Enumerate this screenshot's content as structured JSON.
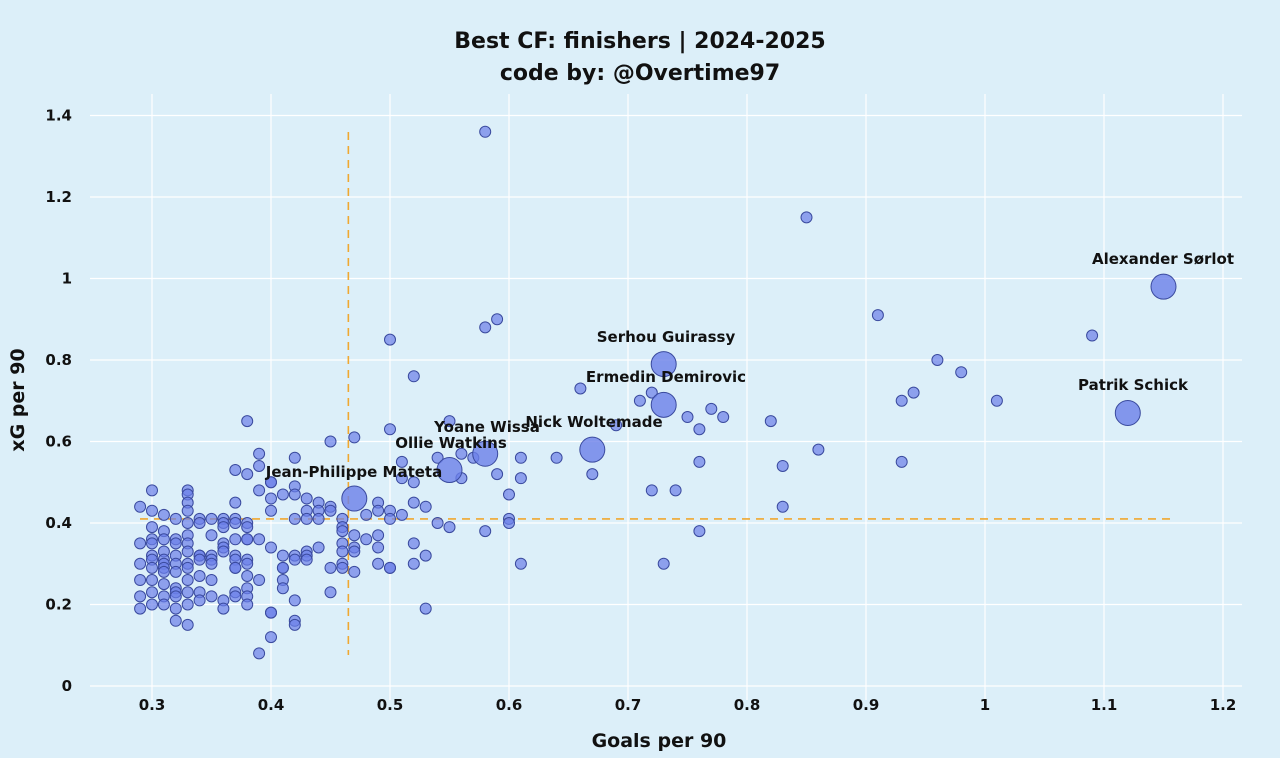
{
  "chart_data": {
    "type": "scatter",
    "title": "Best CF: finishers | 2024-2025",
    "subtitle": "code by: @Overtime97",
    "xlabel": "Goals per 90",
    "ylabel": "xG per 90",
    "xlim": [
      0.25,
      1.21
    ],
    "ylim": [
      0,
      1.42
    ],
    "xticks": [
      "0.3",
      "0.4",
      "0.5",
      "0.6",
      "0.7",
      "0.8",
      "0.9",
      "1",
      "1.1",
      "1.2"
    ],
    "yticks": [
      "0",
      "0.2",
      "0.4",
      "0.6",
      "0.8",
      "1",
      "1.2",
      "1.4"
    ],
    "grid": true,
    "reference_lines": {
      "x_mean": 0.465,
      "y_mean": 0.41
    },
    "colors": {
      "background": "#dceff9",
      "point": "#6b7fe8",
      "point_edge": "#3a4a9e",
      "reference": "#f0a830",
      "grid": "#ffffff"
    },
    "highlighted": [
      {
        "name": "Alexander Sørlot",
        "x": 1.15,
        "y": 0.98
      },
      {
        "name": "Patrik Schick",
        "x": 1.12,
        "y": 0.67
      },
      {
        "name": "Serhou Guirassy",
        "x": 0.73,
        "y": 0.79
      },
      {
        "name": "Ermedin Demirovic",
        "x": 0.73,
        "y": 0.69
      },
      {
        "name": "Nick Woltemade",
        "x": 0.67,
        "y": 0.58
      },
      {
        "name": "Yoane Wissa",
        "x": 0.58,
        "y": 0.57
      },
      {
        "name": "Ollie Watkins",
        "x": 0.55,
        "y": 0.53
      },
      {
        "name": "Jean-Philippe Mateta",
        "x": 0.47,
        "y": 0.46
      }
    ],
    "points": [
      [
        0.58,
        1.36
      ],
      [
        0.85,
        1.15
      ],
      [
        0.91,
        0.91
      ],
      [
        1.09,
        0.86
      ],
      [
        0.96,
        0.8
      ],
      [
        0.98,
        0.77
      ],
      [
        0.94,
        0.72
      ],
      [
        0.93,
        0.7
      ],
      [
        1.01,
        0.7
      ],
      [
        0.93,
        0.55
      ],
      [
        0.86,
        0.58
      ],
      [
        0.83,
        0.54
      ],
      [
        0.83,
        0.44
      ],
      [
        0.82,
        0.65
      ],
      [
        0.78,
        0.66
      ],
      [
        0.77,
        0.68
      ],
      [
        0.76,
        0.63
      ],
      [
        0.75,
        0.66
      ],
      [
        0.76,
        0.55
      ],
      [
        0.76,
        0.38
      ],
      [
        0.74,
        0.48
      ],
      [
        0.73,
        0.3
      ],
      [
        0.72,
        0.48
      ],
      [
        0.72,
        0.72
      ],
      [
        0.71,
        0.7
      ],
      [
        0.69,
        0.64
      ],
      [
        0.66,
        0.73
      ],
      [
        0.67,
        0.52
      ],
      [
        0.64,
        0.56
      ],
      [
        0.61,
        0.56
      ],
      [
        0.61,
        0.51
      ],
      [
        0.61,
        0.3
      ],
      [
        0.6,
        0.47
      ],
      [
        0.6,
        0.41
      ],
      [
        0.6,
        0.4
      ],
      [
        0.59,
        0.9
      ],
      [
        0.58,
        0.88
      ],
      [
        0.59,
        0.52
      ],
      [
        0.58,
        0.38
      ],
      [
        0.57,
        0.56
      ],
      [
        0.56,
        0.57
      ],
      [
        0.56,
        0.51
      ],
      [
        0.55,
        0.65
      ],
      [
        0.55,
        0.39
      ],
      [
        0.54,
        0.56
      ],
      [
        0.54,
        0.4
      ],
      [
        0.53,
        0.44
      ],
      [
        0.53,
        0.32
      ],
      [
        0.53,
        0.19
      ],
      [
        0.52,
        0.76
      ],
      [
        0.52,
        0.5
      ],
      [
        0.52,
        0.45
      ],
      [
        0.52,
        0.35
      ],
      [
        0.52,
        0.3
      ],
      [
        0.51,
        0.55
      ],
      [
        0.51,
        0.51
      ],
      [
        0.51,
        0.42
      ],
      [
        0.5,
        0.85
      ],
      [
        0.5,
        0.63
      ],
      [
        0.5,
        0.43
      ],
      [
        0.5,
        0.41
      ],
      [
        0.5,
        0.29
      ],
      [
        0.5,
        0.29
      ],
      [
        0.49,
        0.45
      ],
      [
        0.49,
        0.43
      ],
      [
        0.49,
        0.37
      ],
      [
        0.49,
        0.34
      ],
      [
        0.49,
        0.3
      ],
      [
        0.48,
        0.42
      ],
      [
        0.48,
        0.36
      ],
      [
        0.47,
        0.61
      ],
      [
        0.47,
        0.37
      ],
      [
        0.47,
        0.34
      ],
      [
        0.47,
        0.33
      ],
      [
        0.47,
        0.28
      ],
      [
        0.46,
        0.41
      ],
      [
        0.46,
        0.39
      ],
      [
        0.46,
        0.38
      ],
      [
        0.46,
        0.35
      ],
      [
        0.46,
        0.33
      ],
      [
        0.46,
        0.3
      ],
      [
        0.46,
        0.29
      ],
      [
        0.45,
        0.6
      ],
      [
        0.45,
        0.44
      ],
      [
        0.45,
        0.43
      ],
      [
        0.45,
        0.29
      ],
      [
        0.45,
        0.23
      ],
      [
        0.44,
        0.45
      ],
      [
        0.44,
        0.43
      ],
      [
        0.44,
        0.41
      ],
      [
        0.44,
        0.34
      ],
      [
        0.43,
        0.46
      ],
      [
        0.43,
        0.43
      ],
      [
        0.43,
        0.41
      ],
      [
        0.43,
        0.33
      ],
      [
        0.43,
        0.32
      ],
      [
        0.43,
        0.31
      ],
      [
        0.42,
        0.56
      ],
      [
        0.42,
        0.49
      ],
      [
        0.42,
        0.47
      ],
      [
        0.42,
        0.41
      ],
      [
        0.42,
        0.32
      ],
      [
        0.42,
        0.31
      ],
      [
        0.42,
        0.21
      ],
      [
        0.42,
        0.16
      ],
      [
        0.42,
        0.15
      ],
      [
        0.41,
        0.47
      ],
      [
        0.41,
        0.32
      ],
      [
        0.41,
        0.29
      ],
      [
        0.41,
        0.29
      ],
      [
        0.41,
        0.26
      ],
      [
        0.41,
        0.24
      ],
      [
        0.4,
        0.5
      ],
      [
        0.4,
        0.5
      ],
      [
        0.4,
        0.46
      ],
      [
        0.4,
        0.43
      ],
      [
        0.4,
        0.34
      ],
      [
        0.4,
        0.18
      ],
      [
        0.4,
        0.18
      ],
      [
        0.4,
        0.12
      ],
      [
        0.39,
        0.57
      ],
      [
        0.39,
        0.54
      ],
      [
        0.39,
        0.48
      ],
      [
        0.39,
        0.36
      ],
      [
        0.39,
        0.26
      ],
      [
        0.39,
        0.08
      ],
      [
        0.38,
        0.65
      ],
      [
        0.38,
        0.52
      ],
      [
        0.38,
        0.4
      ],
      [
        0.38,
        0.39
      ],
      [
        0.38,
        0.36
      ],
      [
        0.38,
        0.36
      ],
      [
        0.38,
        0.31
      ],
      [
        0.38,
        0.3
      ],
      [
        0.38,
        0.27
      ],
      [
        0.38,
        0.24
      ],
      [
        0.38,
        0.22
      ],
      [
        0.38,
        0.2
      ],
      [
        0.37,
        0.53
      ],
      [
        0.37,
        0.45
      ],
      [
        0.37,
        0.41
      ],
      [
        0.37,
        0.4
      ],
      [
        0.37,
        0.36
      ],
      [
        0.37,
        0.32
      ],
      [
        0.37,
        0.31
      ],
      [
        0.37,
        0.29
      ],
      [
        0.37,
        0.29
      ],
      [
        0.37,
        0.23
      ],
      [
        0.37,
        0.22
      ],
      [
        0.36,
        0.41
      ],
      [
        0.36,
        0.4
      ],
      [
        0.36,
        0.39
      ],
      [
        0.36,
        0.35
      ],
      [
        0.36,
        0.34
      ],
      [
        0.36,
        0.33
      ],
      [
        0.36,
        0.21
      ],
      [
        0.36,
        0.19
      ],
      [
        0.35,
        0.41
      ],
      [
        0.35,
        0.37
      ],
      [
        0.35,
        0.32
      ],
      [
        0.35,
        0.31
      ],
      [
        0.35,
        0.3
      ],
      [
        0.35,
        0.26
      ],
      [
        0.35,
        0.22
      ],
      [
        0.34,
        0.41
      ],
      [
        0.34,
        0.4
      ],
      [
        0.34,
        0.32
      ],
      [
        0.34,
        0.32
      ],
      [
        0.34,
        0.31
      ],
      [
        0.34,
        0.27
      ],
      [
        0.34,
        0.23
      ],
      [
        0.34,
        0.21
      ],
      [
        0.33,
        0.48
      ],
      [
        0.33,
        0.47
      ],
      [
        0.33,
        0.45
      ],
      [
        0.33,
        0.43
      ],
      [
        0.33,
        0.4
      ],
      [
        0.33,
        0.37
      ],
      [
        0.33,
        0.35
      ],
      [
        0.33,
        0.33
      ],
      [
        0.33,
        0.3
      ],
      [
        0.33,
        0.29
      ],
      [
        0.33,
        0.26
      ],
      [
        0.33,
        0.23
      ],
      [
        0.33,
        0.2
      ],
      [
        0.33,
        0.15
      ],
      [
        0.32,
        0.41
      ],
      [
        0.32,
        0.36
      ],
      [
        0.32,
        0.35
      ],
      [
        0.32,
        0.32
      ],
      [
        0.32,
        0.3
      ],
      [
        0.32,
        0.28
      ],
      [
        0.32,
        0.24
      ],
      [
        0.32,
        0.23
      ],
      [
        0.32,
        0.22
      ],
      [
        0.32,
        0.19
      ],
      [
        0.32,
        0.16
      ],
      [
        0.31,
        0.42
      ],
      [
        0.31,
        0.38
      ],
      [
        0.31,
        0.36
      ],
      [
        0.31,
        0.33
      ],
      [
        0.31,
        0.31
      ],
      [
        0.31,
        0.3
      ],
      [
        0.31,
        0.29
      ],
      [
        0.31,
        0.28
      ],
      [
        0.31,
        0.25
      ],
      [
        0.31,
        0.22
      ],
      [
        0.31,
        0.2
      ],
      [
        0.3,
        0.48
      ],
      [
        0.3,
        0.43
      ],
      [
        0.3,
        0.39
      ],
      [
        0.3,
        0.36
      ],
      [
        0.3,
        0.35
      ],
      [
        0.3,
        0.32
      ],
      [
        0.3,
        0.31
      ],
      [
        0.3,
        0.29
      ],
      [
        0.3,
        0.26
      ],
      [
        0.3,
        0.23
      ],
      [
        0.3,
        0.2
      ],
      [
        0.29,
        0.44
      ],
      [
        0.29,
        0.35
      ],
      [
        0.29,
        0.3
      ],
      [
        0.29,
        0.26
      ],
      [
        0.29,
        0.22
      ],
      [
        0.29,
        0.19
      ]
    ]
  }
}
